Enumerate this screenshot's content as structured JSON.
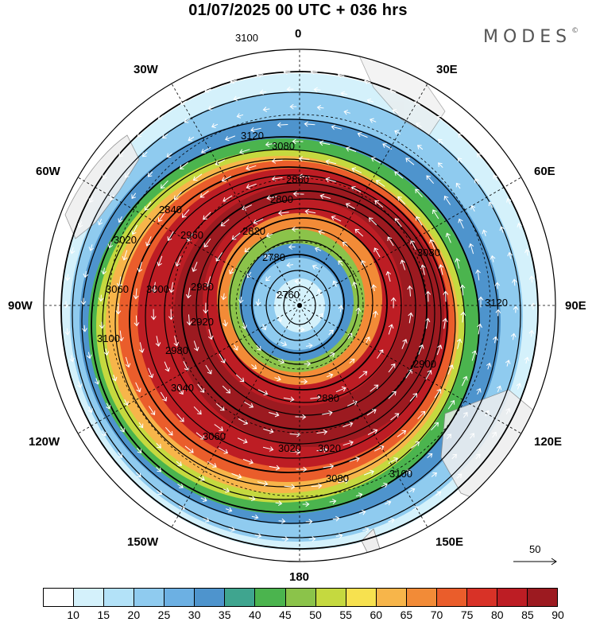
{
  "title": "01/07/2025  00 UTC  + 036 hrs",
  "brand": {
    "name": "MODES",
    "mark": "©"
  },
  "longitude_labels": {
    "top": "0",
    "bottom": "180",
    "left": "90W",
    "right": "90E",
    "upper_left_1": "30W",
    "upper_left_2": "60W",
    "upper_right_1": "30E",
    "upper_right_2": "60E",
    "lower_left_1": "120W",
    "lower_left_2": "150W",
    "lower_right_1": "120E",
    "lower_right_2": "150E"
  },
  "contour_labels": [
    "3120",
    "3080",
    "3100",
    "3060",
    "3040",
    "3020",
    "3000",
    "2980",
    "2960",
    "2920",
    "2900",
    "2880",
    "2860",
    "2840",
    "2820",
    "2800",
    "2780",
    "2760"
  ],
  "vector_scale": {
    "label": "50"
  },
  "colorbar": {
    "colors": [
      "#ffffff",
      "#d4f1fb",
      "#b3e2f8",
      "#8fcbef",
      "#6cb0e3",
      "#4e94cd",
      "#3fa58f",
      "#4bb44e",
      "#8bc34a",
      "#c5d93f",
      "#f7e14f",
      "#f7b54a",
      "#f28b37",
      "#ea5d2b",
      "#d83227",
      "#bd1d24",
      "#9c1a20"
    ],
    "labels": [
      "10",
      "15",
      "20",
      "25",
      "30",
      "35",
      "40",
      "45",
      "50",
      "55",
      "60",
      "65",
      "70",
      "75",
      "80",
      "85",
      "90"
    ]
  }
}
